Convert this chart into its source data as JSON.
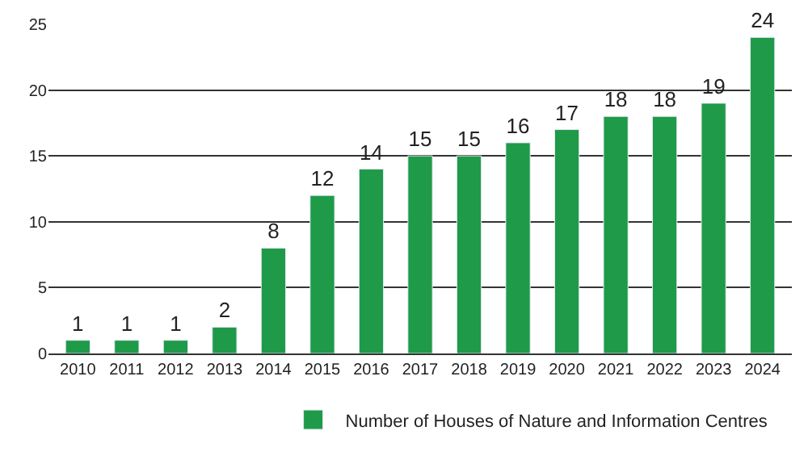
{
  "chart_data": {
    "type": "bar",
    "categories": [
      "2010",
      "2011",
      "2012",
      "2013",
      "2014",
      "2015",
      "2016",
      "2017",
      "2018",
      "2019",
      "2020",
      "2021",
      "2022",
      "2023",
      "2024"
    ],
    "series": [
      {
        "name": "Number of Houses of Nature and Information Centres",
        "color": "#1f9a48",
        "values": [
          1,
          1,
          1,
          2,
          8,
          12,
          14,
          15,
          15,
          16,
          17,
          18,
          18,
          19,
          24
        ]
      }
    ],
    "ylim": [
      0,
      25
    ],
    "yticks": [
      0,
      5,
      10,
      15,
      20,
      25
    ],
    "grid": "y",
    "legend": "bottom",
    "data_labels": true
  }
}
